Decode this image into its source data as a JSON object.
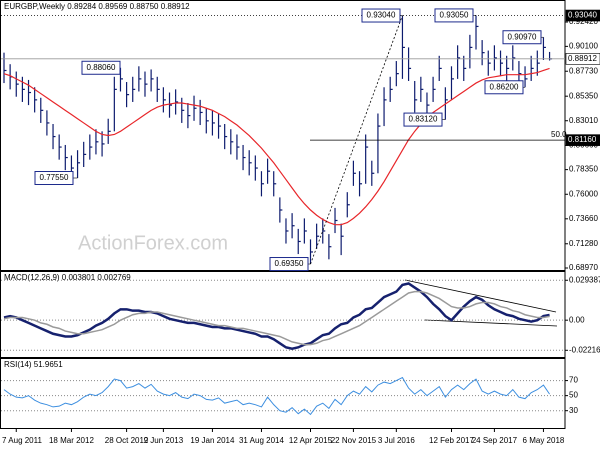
{
  "chart_data": [
    {
      "type": "ohlc",
      "title": "EURGBP,Weekly  0.89284 0.89569 0.88750 0.88912",
      "watermark": "ActionForex.com",
      "categories": [
        null,
        null,
        "7 Aug 2011",
        null,
        null,
        null,
        null,
        null,
        null,
        null,
        null,
        "18 Mar 2012",
        null,
        null,
        null,
        null,
        null,
        null,
        null,
        null,
        "28 Oct 2012",
        null,
        null,
        null,
        null,
        null,
        "9 Jun 2013",
        null,
        null,
        null,
        null,
        null,
        null,
        null,
        "19 Jan 2014",
        null,
        null,
        null,
        null,
        null,
        null,
        null,
        "31 Aug 2014",
        null,
        null,
        null,
        null,
        null,
        null,
        null,
        "12 Apr 2015",
        null,
        null,
        null,
        null,
        null,
        null,
        "22 Nov 2015",
        null,
        null,
        null,
        null,
        null,
        null,
        "3 Jul 2016",
        null,
        null,
        null,
        null,
        null,
        null,
        null,
        null,
        "12 Feb 2017",
        null,
        null,
        null,
        null,
        null,
        null,
        "24 Sep 2017",
        null,
        null,
        null,
        null,
        null,
        null,
        null,
        "6 May 2018",
        null
      ],
      "high": [
        0.895,
        0.884,
        0.877,
        0.872,
        0.869,
        0.862,
        0.852,
        0.84,
        0.827,
        0.817,
        0.807,
        0.797,
        0.802,
        0.81,
        0.817,
        0.822,
        0.82,
        0.832,
        0.872,
        0.8806,
        0.867,
        0.872,
        0.882,
        0.877,
        0.879,
        0.872,
        0.862,
        0.857,
        0.86,
        0.852,
        0.847,
        0.854,
        0.85,
        0.842,
        0.84,
        0.837,
        0.827,
        0.822,
        0.817,
        0.807,
        0.802,
        0.797,
        0.782,
        0.794,
        0.782,
        0.757,
        0.737,
        0.742,
        0.727,
        0.737,
        0.717,
        0.732,
        0.737,
        0.722,
        0.747,
        0.732,
        0.762,
        0.792,
        0.782,
        0.817,
        0.792,
        0.837,
        0.862,
        0.872,
        0.887,
        0.9304,
        0.9,
        0.868,
        0.872,
        0.857,
        0.872,
        0.892,
        0.862,
        0.882,
        0.902,
        0.892,
        0.912,
        0.9305,
        0.907,
        0.897,
        0.902,
        0.897,
        0.892,
        0.902,
        0.887,
        0.882,
        0.892,
        0.897,
        0.9097,
        0.89569
      ],
      "low": [
        0.866,
        0.86,
        0.853,
        0.848,
        0.845,
        0.838,
        0.828,
        0.816,
        0.803,
        0.793,
        0.783,
        0.778,
        0.7755,
        0.786,
        0.793,
        0.798,
        0.796,
        0.808,
        0.82,
        0.858,
        0.843,
        0.848,
        0.858,
        0.853,
        0.858,
        0.848,
        0.838,
        0.833,
        0.836,
        0.828,
        0.823,
        0.83,
        0.826,
        0.818,
        0.816,
        0.813,
        0.803,
        0.798,
        0.793,
        0.783,
        0.778,
        0.773,
        0.758,
        0.77,
        0.758,
        0.733,
        0.713,
        0.718,
        0.703,
        0.713,
        0.6935,
        0.708,
        0.713,
        0.698,
        0.723,
        0.702,
        0.738,
        0.768,
        0.758,
        0.77,
        0.768,
        0.78,
        0.825,
        0.848,
        0.863,
        0.87,
        0.868,
        0.838,
        0.848,
        0.833,
        0.848,
        0.868,
        0.8312,
        0.85,
        0.87,
        0.868,
        0.88,
        0.898,
        0.883,
        0.873,
        0.878,
        0.873,
        0.868,
        0.878,
        0.863,
        0.862,
        0.868,
        0.873,
        0.888,
        0.8875
      ],
      "close": [
        0.878,
        0.872,
        0.865,
        0.86,
        0.857,
        0.85,
        0.84,
        0.828,
        0.815,
        0.805,
        0.795,
        0.785,
        0.79,
        0.798,
        0.805,
        0.81,
        0.808,
        0.82,
        0.86,
        0.87,
        0.855,
        0.86,
        0.87,
        0.865,
        0.87,
        0.86,
        0.85,
        0.845,
        0.848,
        0.84,
        0.835,
        0.842,
        0.838,
        0.83,
        0.828,
        0.825,
        0.815,
        0.81,
        0.805,
        0.795,
        0.79,
        0.785,
        0.77,
        0.782,
        0.77,
        0.745,
        0.725,
        0.73,
        0.715,
        0.725,
        0.705,
        0.72,
        0.725,
        0.71,
        0.735,
        0.72,
        0.75,
        0.78,
        0.77,
        0.805,
        0.78,
        0.825,
        0.85,
        0.86,
        0.875,
        0.9,
        0.88,
        0.85,
        0.86,
        0.845,
        0.86,
        0.88,
        0.85,
        0.87,
        0.89,
        0.88,
        0.9,
        0.92,
        0.895,
        0.885,
        0.89,
        0.885,
        0.88,
        0.89,
        0.875,
        0.87,
        0.88,
        0.885,
        0.9,
        0.88912
      ],
      "color": "#0d1b6e",
      "series": [
        {
          "color": "#e8262a",
          "values": [
            0.875,
            0.873,
            0.87,
            0.867,
            0.864,
            0.86,
            0.856,
            0.852,
            0.848,
            0.844,
            0.84,
            0.836,
            0.832,
            0.828,
            0.824,
            0.82,
            0.817,
            0.816,
            0.817,
            0.82,
            0.824,
            0.828,
            0.832,
            0.836,
            0.84,
            0.843,
            0.845,
            0.846,
            0.847,
            0.847,
            0.846,
            0.845,
            0.844,
            0.842,
            0.84,
            0.837,
            0.834,
            0.83,
            0.826,
            0.821,
            0.816,
            0.81,
            0.804,
            0.797,
            0.79,
            0.782,
            0.774,
            0.766,
            0.758,
            0.751,
            0.745,
            0.74,
            0.736,
            0.733,
            0.731,
            0.731,
            0.733,
            0.737,
            0.742,
            0.748,
            0.755,
            0.763,
            0.772,
            0.782,
            0.792,
            0.802,
            0.812,
            0.82,
            0.827,
            0.833,
            0.838,
            0.842,
            0.846,
            0.85,
            0.854,
            0.858,
            0.862,
            0.866,
            0.869,
            0.871,
            0.872,
            0.873,
            0.874,
            0.874,
            0.874,
            0.874,
            0.875,
            0.876,
            0.878,
            0.88
          ]
        }
      ],
      "ylim": [
        0.6878,
        0.9452
      ],
      "yticks": [
        {
          "value": 0.9242,
          "label": "0.92420"
        },
        {
          "value": 0.901,
          "label": "0.90100"
        },
        {
          "value": 0.8773,
          "label": "0.87730"
        },
        {
          "value": 0.8535,
          "label": "0.85350"
        },
        {
          "value": 0.8301,
          "label": "0.83010"
        },
        {
          "value": 0.8066,
          "label": "0.80660"
        },
        {
          "value": 0.7835,
          "label": "0.78350"
        },
        {
          "value": 0.76,
          "label": "0.76000"
        },
        {
          "value": 0.7366,
          "label": "0.73660"
        },
        {
          "value": 0.7128,
          "label": "0.71280"
        },
        {
          "value": 0.6897,
          "label": "0.68970"
        }
      ],
      "price_markers": [
        {
          "value": 0.9304,
          "label": "0.93040",
          "color": "#000000"
        },
        {
          "value": 0.88912,
          "label": "0.88912",
          "color": "#ffffff"
        },
        {
          "value": 0.8116,
          "label": "0.81160",
          "color": "#000000"
        }
      ],
      "fib_label": "50.0",
      "annotations": [
        {
          "value": 0.8806,
          "label": "0.88060"
        },
        {
          "value": 0.7755,
          "label": "0.77550"
        },
        {
          "value": 0.6935,
          "label": "0.69350"
        },
        {
          "value": 0.9304,
          "label": "0.93040"
        },
        {
          "value": 0.9305,
          "label": "0.93050"
        },
        {
          "value": 0.8312,
          "label": "0.83120"
        },
        {
          "value": 0.862,
          "label": "0.86200"
        },
        {
          "value": 0.9097,
          "label": "0.90970"
        }
      ]
    },
    {
      "type": "line",
      "title": "MACD(12,26,9) 0.003801 0.002769",
      "series": [
        {
          "color": "#16216e",
          "values": [
            0.002,
            0.003,
            0.002,
            0.0,
            -0.002,
            -0.004,
            -0.006,
            -0.008,
            -0.01,
            -0.011,
            -0.012,
            -0.012,
            -0.011,
            -0.009,
            -0.007,
            -0.004,
            -0.002,
            0.001,
            0.005,
            0.008,
            0.008,
            0.007,
            0.007,
            0.006,
            0.006,
            0.005,
            0.003,
            0.001,
            0.0,
            -0.001,
            -0.002,
            -0.002,
            -0.003,
            -0.004,
            -0.005,
            -0.005,
            -0.006,
            -0.006,
            -0.007,
            -0.008,
            -0.009,
            -0.01,
            -0.012,
            -0.012,
            -0.014,
            -0.017,
            -0.02,
            -0.021,
            -0.02,
            -0.018,
            -0.017,
            -0.014,
            -0.011,
            -0.01,
            -0.006,
            -0.003,
            -0.002,
            0.002,
            0.004,
            0.008,
            0.009,
            0.013,
            0.017,
            0.019,
            0.021,
            0.026,
            0.027,
            0.024,
            0.021,
            0.017,
            0.012,
            0.008,
            0.003,
            0.0,
            0.005,
            0.01,
            0.014,
            0.017,
            0.015,
            0.011,
            0.008,
            0.006,
            0.004,
            0.003,
            0.001,
            0.0,
            -0.001,
            0.0,
            0.003,
            0.003801
          ]
        },
        {
          "color": "#9a9a9a",
          "values": [
            0.001,
            0.002,
            0.002,
            0.002,
            0.001,
            0.0,
            -0.002,
            -0.003,
            -0.005,
            -0.006,
            -0.008,
            -0.009,
            -0.01,
            -0.01,
            -0.009,
            -0.008,
            -0.007,
            -0.005,
            -0.003,
            0.0,
            0.002,
            0.004,
            0.005,
            0.005,
            0.006,
            0.006,
            0.005,
            0.004,
            0.003,
            0.002,
            0.001,
            0.0,
            -0.001,
            -0.002,
            -0.003,
            -0.004,
            -0.004,
            -0.005,
            -0.006,
            -0.006,
            -0.007,
            -0.008,
            -0.009,
            -0.01,
            -0.011,
            -0.012,
            -0.014,
            -0.016,
            -0.017,
            -0.018,
            -0.018,
            -0.017,
            -0.015,
            -0.014,
            -0.012,
            -0.01,
            -0.008,
            -0.006,
            -0.004,
            -0.001,
            0.002,
            0.005,
            0.008,
            0.011,
            0.014,
            0.017,
            0.02,
            0.021,
            0.021,
            0.02,
            0.018,
            0.016,
            0.013,
            0.01,
            0.009,
            0.009,
            0.01,
            0.012,
            0.013,
            0.013,
            0.012,
            0.01,
            0.009,
            0.007,
            0.006,
            0.004,
            0.003,
            0.002,
            0.002,
            0.002769
          ]
        }
      ],
      "ylim": [
        -0.0271,
        0.0362
      ],
      "yticks": [
        0.029387,
        {
          "value": 0,
          "label": "0.00"
        },
        -0.022161
      ]
    },
    {
      "type": "line",
      "title": "RSI(14) 51.9651",
      "color": "#3d8fe0",
      "values": [
        58,
        52,
        48,
        47,
        50,
        44,
        40,
        38,
        35,
        36,
        40,
        38,
        42,
        48,
        52,
        50,
        54,
        62,
        72,
        70,
        60,
        62,
        66,
        60,
        65,
        56,
        52,
        50,
        54,
        48,
        46,
        52,
        50,
        45,
        44,
        47,
        40,
        42,
        44,
        38,
        40,
        38,
        35,
        48,
        38,
        30,
        28,
        34,
        26,
        32,
        25,
        36,
        40,
        33,
        45,
        38,
        50,
        56,
        52,
        62,
        55,
        64,
        68,
        66,
        70,
        74,
        60,
        52,
        58,
        50,
        56,
        62,
        48,
        58,
        64,
        58,
        66,
        72,
        56,
        52,
        56,
        52,
        50,
        58,
        48,
        46,
        54,
        58,
        64,
        51.9651
      ],
      "ylim": [
        7,
        100
      ],
      "yticks": [
        70,
        50,
        30
      ]
    }
  ]
}
